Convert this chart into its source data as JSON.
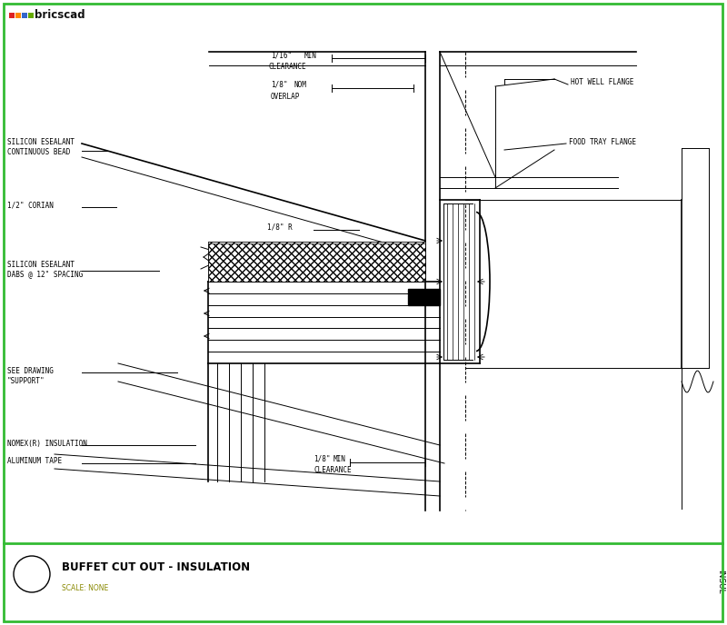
{
  "bg": "#ffffff",
  "border": "#33bb33",
  "lc": "#000000",
  "lw": 0.7,
  "lw2": 1.2,
  "title": "BUFFET CUT OUT - INSULATION",
  "scale": "SCALE: NONE",
  "insul": "INSUL",
  "logo_colors": [
    "#dd2222",
    "#ff8800",
    "#3366cc",
    "#66aa00"
  ],
  "labels": {
    "sil1a": "SILICON ESEALANT",
    "sil1b": "CONTINUOUS BEAD",
    "corian": "1/2\" CORIAN",
    "sil2a": "SILICON ESEALANT",
    "sil2b": "DABS @ 12\" SPACING",
    "see_a": "SEE DRAWING",
    "see_b": "\"SUPPORT\"",
    "nomex": "NOMEX(R) INSULATION",
    "alum": "ALUMINUM TAPE",
    "hotwell": "HOT WELL FLANGE",
    "foodtray": "FOOD TRAY FLANGE",
    "d1a": "1/16\"",
    "d1b": "MIN",
    "cl1": "CLEARANCE",
    "d2a": "1/8\"",
    "d2b": "NOM",
    "ovlp": "OVERLAP",
    "d3": "1/8\" R",
    "d4a": "1/8\"",
    "d4b": "MIN",
    "cl2": "CLEARANCE"
  }
}
